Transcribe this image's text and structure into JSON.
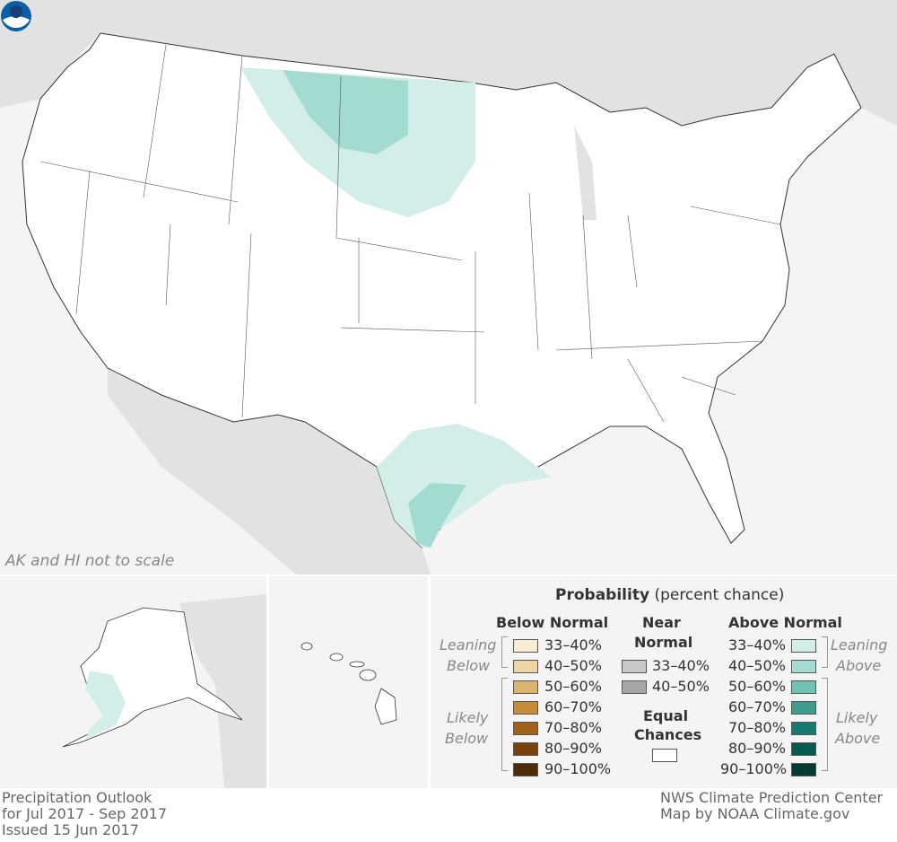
{
  "map": {
    "note": "AK and HI not to scale",
    "colors": {
      "background": "#f4f4f4",
      "neighbor_land": "#e2e2e2",
      "equal_chances": "#ffffff",
      "leaning_above": "#d3ede8",
      "likely_above": "#a3dbd2",
      "border": "#333333"
    },
    "logo": "NOAA"
  },
  "legend": {
    "title_bold": "Probability",
    "title_rest": "(percent chance)",
    "below": {
      "header": "Below Normal",
      "leaning": [
        "Leaning",
        "Below"
      ],
      "likely": [
        "Likely",
        "Below"
      ],
      "items": [
        {
          "label": "33–40%",
          "color": "#f8ecd2"
        },
        {
          "label": "40–50%",
          "color": "#eed5a3"
        },
        {
          "label": "50–60%",
          "color": "#dbb56e"
        },
        {
          "label": "60–70%",
          "color": "#c78c3a"
        },
        {
          "label": "70–80%",
          "color": "#a0621a"
        },
        {
          "label": "80–90%",
          "color": "#7a420b"
        },
        {
          "label": "90–100%",
          "color": "#4e2d06"
        }
      ]
    },
    "near": {
      "header": [
        "Near",
        "Normal"
      ],
      "items": [
        {
          "label": "33–40%",
          "color": "#c8c8c8"
        },
        {
          "label": "40–50%",
          "color": "#a6a6a6"
        }
      ]
    },
    "equal": {
      "header": [
        "Equal",
        "Chances"
      ],
      "color": "#ffffff"
    },
    "above": {
      "header": "Above Normal",
      "leaning": [
        "Leaning",
        "Above"
      ],
      "likely": [
        "Likely",
        "Above"
      ],
      "items": [
        {
          "label": "33–40%",
          "color": "#d3ede8"
        },
        {
          "label": "40–50%",
          "color": "#a3dbd2"
        },
        {
          "label": "50–60%",
          "color": "#6fc2b4"
        },
        {
          "label": "60–70%",
          "color": "#3f9d90"
        },
        {
          "label": "70–80%",
          "color": "#167a70"
        },
        {
          "label": "80–90%",
          "color": "#035a4f"
        },
        {
          "label": "90–100%",
          "color": "#023b33"
        }
      ]
    }
  },
  "footer": {
    "left": [
      "Precipitation Outlook",
      "for Jul 2017 - Sep 2017",
      "Issued 15 Jun 2017"
    ],
    "right": [
      "NWS Climate Prediction Center",
      "Map by NOAA Climate.gov"
    ]
  }
}
